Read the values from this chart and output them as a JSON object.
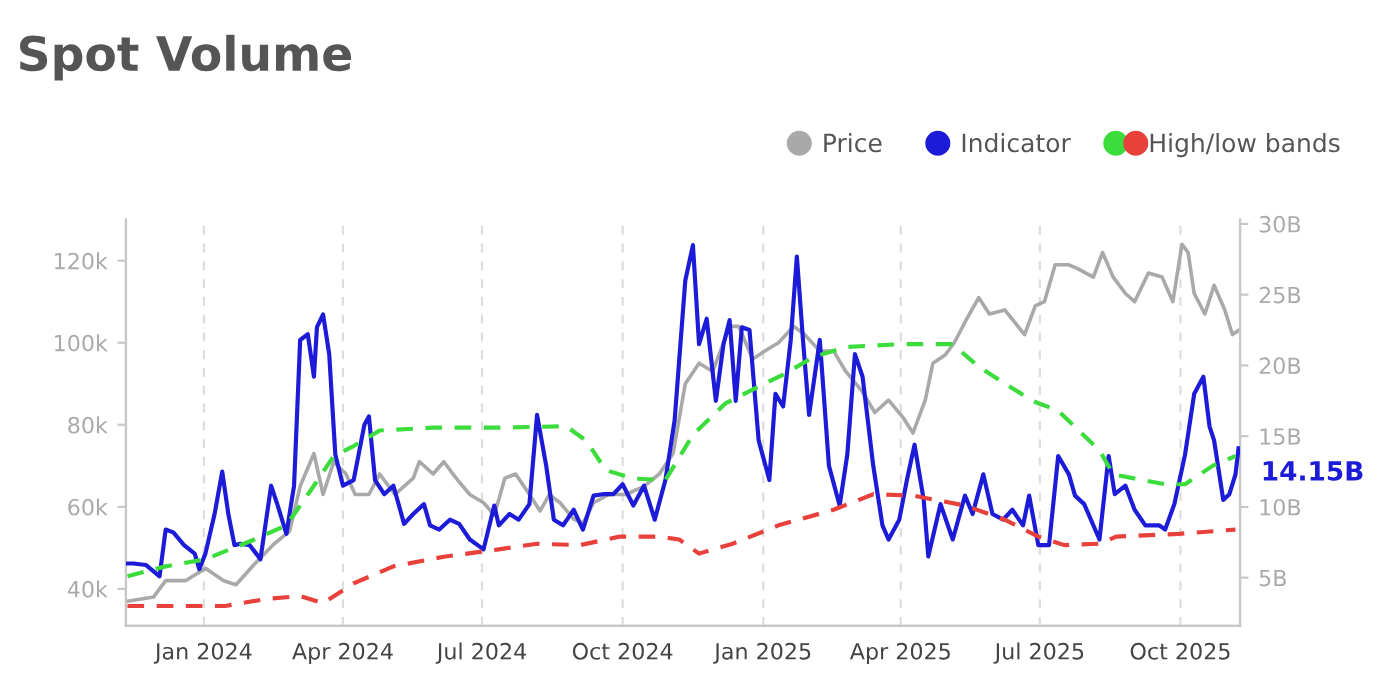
{
  "chart_data": {
    "type": "line",
    "title": "Spot Volume",
    "legend": "top right",
    "grid": "x",
    "marker": "none",
    "xlim": [
      "2023-11-11",
      "2025-11-09"
    ],
    "xticks": [
      {
        "value": "2024-01-01",
        "label": "Jan 2024"
      },
      {
        "value": "2024-04-01",
        "label": "Apr 2024"
      },
      {
        "value": "2024-07-01",
        "label": "Jul 2024"
      },
      {
        "value": "2024-10-01",
        "label": "Oct 2024"
      },
      {
        "value": "2025-01-01",
        "label": "Jan 2025"
      },
      {
        "value": "2025-04-01",
        "label": "Apr 2025"
      },
      {
        "value": "2025-07-01",
        "label": "Jul 2025"
      },
      {
        "value": "2025-10-01",
        "label": "Oct 2025"
      }
    ],
    "ylim": [
      31,
      130
    ],
    "yticks": [
      {
        "value": 40,
        "label": "40k"
      },
      {
        "value": 60,
        "label": "60k"
      },
      {
        "value": 80,
        "label": "80k"
      },
      {
        "value": 100,
        "label": "100k"
      },
      {
        "value": 120,
        "label": "120k"
      }
    ],
    "y2lim": [
      1.6,
      30.3
    ],
    "y2ticks": [
      {
        "value": 5,
        "label": "5B"
      },
      {
        "value": 10,
        "label": "10B"
      },
      {
        "value": 15,
        "label": "15B"
      },
      {
        "value": 20,
        "label": "20B"
      },
      {
        "value": 25,
        "label": "25B"
      },
      {
        "value": 30,
        "label": "30B"
      }
    ],
    "annotations": [
      "14.15B"
    ],
    "series": [
      {
        "name": "Price",
        "color": "#a9a9a9",
        "line_style": "solid",
        "x": [
          "2023-11-12",
          "2023-11-29",
          "2023-12-07",
          "2023-12-20",
          "2024-01-02",
          "2024-01-14",
          "2024-01-22",
          "2024-02-03",
          "2024-02-16",
          "2024-02-26",
          "2024-03-04",
          "2024-03-13",
          "2024-03-19",
          "2024-03-26",
          "2024-04-03",
          "2024-04-09",
          "2024-04-18",
          "2024-04-25",
          "2024-05-05",
          "2024-05-17",
          "2024-05-21",
          "2024-05-30",
          "2024-06-06",
          "2024-06-14",
          "2024-06-23",
          "2024-07-02",
          "2024-07-09",
          "2024-07-16",
          "2024-07-23",
          "2024-08-01",
          "2024-08-08",
          "2024-08-14",
          "2024-08-21",
          "2024-08-30",
          "2024-09-05",
          "2024-09-12",
          "2024-09-22",
          "2024-10-03",
          "2024-10-15",
          "2024-10-25",
          "2024-11-03",
          "2024-11-11",
          "2024-11-20",
          "2024-11-29",
          "2024-12-10",
          "2024-12-16",
          "2024-12-25",
          "2025-01-02",
          "2025-01-11",
          "2025-01-21",
          "2025-01-28",
          "2025-02-07",
          "2025-02-16",
          "2025-02-24",
          "2025-03-07",
          "2025-03-15",
          "2025-03-24",
          "2025-04-02",
          "2025-04-09",
          "2025-04-17",
          "2025-04-22",
          "2025-04-30",
          "2025-05-06",
          "2025-05-13",
          "2025-05-22",
          "2025-05-29",
          "2025-06-08",
          "2025-06-21",
          "2025-06-28",
          "2025-07-04",
          "2025-07-11",
          "2025-07-20",
          "2025-07-26",
          "2025-08-05",
          "2025-08-11",
          "2025-08-18",
          "2025-08-26",
          "2025-09-01",
          "2025-09-10",
          "2025-09-19",
          "2025-09-26",
          "2025-10-02",
          "2025-10-06",
          "2025-10-10",
          "2025-10-17",
          "2025-10-23",
          "2025-10-30",
          "2025-11-04",
          "2025-11-08"
        ],
        "values": [
          37,
          38,
          42,
          42,
          45,
          42,
          41,
          46,
          51,
          54,
          65,
          73,
          63,
          71,
          68,
          63,
          63,
          68,
          63,
          67,
          71,
          68,
          71,
          67,
          63,
          61,
          58,
          67,
          68,
          63,
          59,
          63,
          61,
          57,
          56,
          61,
          63,
          63,
          65,
          68,
          73,
          90,
          95,
          93,
          104,
          104,
          96,
          98,
          100,
          104,
          102,
          98,
          98,
          93,
          88,
          83,
          86,
          82,
          78,
          86,
          95,
          97,
          100,
          105,
          111,
          107,
          108,
          102,
          109,
          110,
          119,
          119,
          118,
          116,
          122,
          116,
          112,
          110,
          117,
          116,
          110,
          124,
          122,
          112,
          107,
          114,
          108,
          102,
          103
        ]
      },
      {
        "name": "Indicator",
        "color": "#1c1cd8",
        "line_style": "solid",
        "axis": "y2",
        "x": [
          "2023-11-12",
          "2023-11-16",
          "2023-11-24",
          "2023-12-03",
          "2023-12-07",
          "2023-12-12",
          "2023-12-19",
          "2023-12-26",
          "2023-12-29",
          "2024-01-02",
          "2024-01-08",
          "2024-01-13",
          "2024-01-17",
          "2024-01-21",
          "2024-01-25",
          "2024-01-31",
          "2024-02-07",
          "2024-02-14",
          "2024-02-18",
          "2024-02-24",
          "2024-02-29",
          "2024-03-04",
          "2024-03-09",
          "2024-03-13",
          "2024-03-15",
          "2024-03-19",
          "2024-03-23",
          "2024-03-27",
          "2024-04-01",
          "2024-04-08",
          "2024-04-15",
          "2024-04-18",
          "2024-04-22",
          "2024-04-28",
          "2024-05-04",
          "2024-05-11",
          "2024-05-17",
          "2024-05-24",
          "2024-05-28",
          "2024-06-03",
          "2024-06-10",
          "2024-06-16",
          "2024-06-23",
          "2024-07-02",
          "2024-07-09",
          "2024-07-12",
          "2024-07-19",
          "2024-07-25",
          "2024-08-01",
          "2024-08-06",
          "2024-08-12",
          "2024-08-17",
          "2024-08-23",
          "2024-08-30",
          "2024-09-05",
          "2024-09-12",
          "2024-09-18",
          "2024-09-25",
          "2024-10-01",
          "2024-10-08",
          "2024-10-15",
          "2024-10-22",
          "2024-10-29",
          "2024-11-04",
          "2024-11-11",
          "2024-11-16",
          "2024-11-20",
          "2024-11-25",
          "2024-12-01",
          "2024-12-06",
          "2024-12-10",
          "2024-12-14",
          "2024-12-18",
          "2024-12-23",
          "2024-12-29",
          "2025-01-05",
          "2025-01-09",
          "2025-01-14",
          "2025-01-19",
          "2025-01-23",
          "2025-01-27",
          "2025-01-31",
          "2025-02-07",
          "2025-02-13",
          "2025-02-20",
          "2025-02-25",
          "2025-03-02",
          "2025-03-07",
          "2025-03-14",
          "2025-03-20",
          "2025-03-24",
          "2025-03-31",
          "2025-04-05",
          "2025-04-10",
          "2025-04-16",
          "2025-04-19",
          "2025-04-27",
          "2025-05-05",
          "2025-05-13",
          "2025-05-18",
          "2025-05-25",
          "2025-05-31",
          "2025-06-07",
          "2025-06-13",
          "2025-06-20",
          "2025-06-24",
          "2025-06-30",
          "2025-07-07",
          "2025-07-13",
          "2025-07-20",
          "2025-07-24",
          "2025-07-30",
          "2025-08-09",
          "2025-08-15",
          "2025-08-19",
          "2025-08-26",
          "2025-09-01",
          "2025-09-08",
          "2025-09-17",
          "2025-09-21",
          "2025-09-27",
          "2025-10-04",
          "2025-10-10",
          "2025-10-16",
          "2025-10-20",
          "2025-10-23",
          "2025-10-29",
          "2025-11-02",
          "2025-11-06",
          "2025-11-08"
        ],
        "values": [
          6.0,
          6.0,
          5.9,
          5.1,
          8.4,
          8.2,
          7.3,
          6.7,
          5.6,
          6.7,
          9.5,
          12.5,
          9.5,
          7.3,
          7.4,
          7.3,
          6.3,
          11.5,
          10.2,
          8.1,
          11.5,
          21.8,
          22.2,
          19.2,
          22.7,
          23.6,
          20.8,
          13.7,
          11.5,
          11.9,
          15.8,
          16.4,
          11.9,
          10.9,
          11.5,
          8.8,
          9.5,
          10.2,
          8.7,
          8.4,
          9.1,
          8.8,
          7.7,
          7.0,
          10.1,
          8.7,
          9.5,
          9.1,
          10.2,
          16.5,
          12.9,
          9.1,
          8.7,
          9.8,
          8.4,
          10.8,
          10.9,
          10.9,
          11.6,
          10.1,
          11.5,
          9.1,
          11.9,
          16.1,
          26.0,
          28.5,
          21.5,
          23.3,
          17.5,
          21.5,
          23.2,
          17.5,
          22.7,
          22.5,
          14.7,
          11.9,
          18.0,
          17.1,
          21.8,
          27.7,
          21.8,
          16.5,
          21.8,
          12.9,
          10.1,
          13.7,
          20.8,
          19.2,
          12.9,
          8.7,
          7.7,
          9.1,
          11.9,
          14.4,
          10.5,
          6.5,
          10.2,
          7.7,
          10.8,
          9.5,
          12.3,
          9.5,
          9.1,
          9.8,
          8.7,
          10.8,
          7.3,
          7.3,
          13.6,
          12.3,
          10.8,
          10.2,
          7.7,
          13.6,
          10.9,
          11.5,
          9.8,
          8.7,
          8.7,
          8.4,
          10.2,
          13.7,
          18.0,
          19.2,
          15.7,
          14.7,
          10.5,
          10.9,
          12.3,
          14.15
        ]
      },
      {
        "name": "High/low bands",
        "color": "#3ddc3d",
        "line_style": "dashed",
        "axis": "y2",
        "x": [
          "2023-11-12",
          "2023-12-07",
          "2024-01-02",
          "2024-02-03",
          "2024-02-24",
          "2024-03-13",
          "2024-03-26",
          "2024-04-08",
          "2024-04-25",
          "2024-05-30",
          "2024-07-12",
          "2024-08-25",
          "2024-09-07",
          "2024-09-20",
          "2024-10-08",
          "2024-10-29",
          "2024-11-16",
          "2024-12-07",
          "2024-12-29",
          "2025-01-15",
          "2025-02-03",
          "2025-02-24",
          "2025-03-31",
          "2025-05-05",
          "2025-05-22",
          "2025-06-26",
          "2025-07-13",
          "2025-08-09",
          "2025-08-18",
          "2025-09-21",
          "2025-10-04",
          "2025-10-22",
          "2025-11-06"
        ],
        "values": [
          5.1,
          5.8,
          6.3,
          7.7,
          8.7,
          11.5,
          13.6,
          14.3,
          15.4,
          15.6,
          15.6,
          15.7,
          14.7,
          12.6,
          12.0,
          11.9,
          15.1,
          17.3,
          18.5,
          19.4,
          20.6,
          21.3,
          21.5,
          21.5,
          19.9,
          17.5,
          16.8,
          14.0,
          12.3,
          11.6,
          11.6,
          12.9,
          13.6
        ]
      },
      {
        "color": "#e8413c",
        "line_style": "dashed",
        "axis": "y2",
        "x": [
          "2023-11-12",
          "2023-12-16",
          "2024-01-15",
          "2024-02-11",
          "2024-03-04",
          "2024-03-19",
          "2024-04-08",
          "2024-05-04",
          "2024-06-07",
          "2024-07-12",
          "2024-08-06",
          "2024-09-03",
          "2024-09-29",
          "2024-10-25",
          "2024-11-07",
          "2024-11-20",
          "2024-12-12",
          "2025-01-11",
          "2025-02-16",
          "2025-03-14",
          "2025-04-09",
          "2025-05-13",
          "2025-06-08",
          "2025-06-30",
          "2025-07-17",
          "2025-08-09",
          "2025-08-20",
          "2025-09-30",
          "2025-11-06"
        ],
        "values": [
          3.0,
          3.0,
          3.0,
          3.5,
          3.7,
          3.2,
          4.6,
          5.8,
          6.5,
          7.0,
          7.4,
          7.3,
          7.9,
          7.9,
          7.7,
          6.7,
          7.4,
          8.7,
          9.8,
          10.9,
          10.8,
          10.1,
          9.1,
          7.9,
          7.3,
          7.4,
          7.9,
          8.1,
          8.4
        ]
      }
    ]
  }
}
